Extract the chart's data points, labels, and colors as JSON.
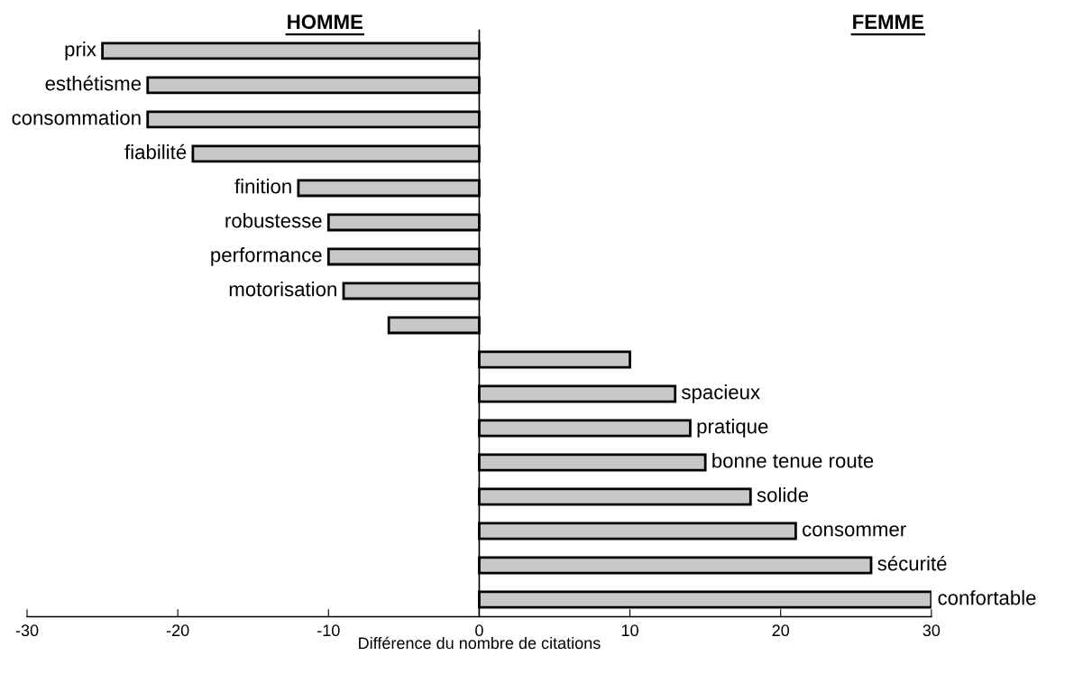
{
  "chart_data": {
    "type": "bar",
    "orientation": "horizontal",
    "categories": [
      "prix",
      "esthétisme",
      "consommation",
      "fiabilité",
      "finition",
      "robustesse",
      "performance",
      "motorisation",
      null,
      null,
      "spacieux",
      "pratique",
      "bonne tenue route",
      "solide",
      "consommer",
      "sécurité",
      "confortable"
    ],
    "values": [
      -25,
      -22,
      -22,
      -19,
      -12,
      -10,
      -10,
      -9,
      -6,
      10,
      13,
      14,
      15,
      18,
      21,
      26,
      30
    ],
    "color": "#c8c8c8",
    "xlabel": "Différence du nombre de citations",
    "annotations": [
      "HOMME",
      "FEMME"
    ],
    "xlim": [
      -30,
      30
    ],
    "xticks": [
      -30,
      -20,
      -10,
      0,
      10,
      20,
      30
    ],
    "legend": false
  }
}
